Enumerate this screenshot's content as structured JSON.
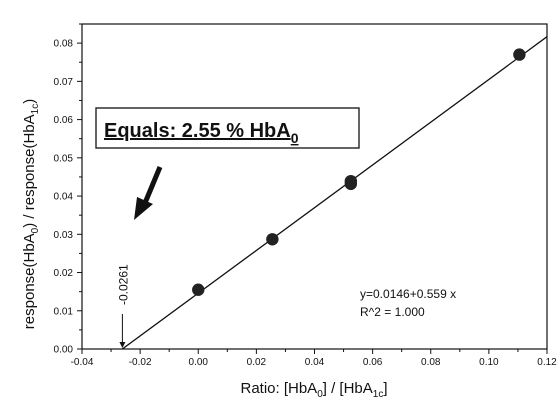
{
  "chart_data": {
    "type": "scatter",
    "title": "",
    "xlabel": {
      "pre": "Ratio: [HbA",
      "sub1": "0",
      "mid": "] / [HbA",
      "sub2": "1c",
      "post": "]"
    },
    "ylabel": {
      "pre": "response(HbA",
      "sub1": "0",
      "mid": ") / response(HbA",
      "sub2": "1c",
      "post": ")"
    },
    "xlim": [
      -0.04,
      0.12
    ],
    "ylim": [
      0.0,
      0.085
    ],
    "xticks": [
      -0.04,
      -0.02,
      0.0,
      0.02,
      0.04,
      0.06,
      0.08,
      0.1,
      0.12
    ],
    "xtick_labels": [
      "-0.04",
      "-0.02",
      "0.00",
      "0.02",
      "0.04",
      "0.06",
      "0.08",
      "0.10",
      "0.12"
    ],
    "yticks": [
      0.0,
      0.01,
      0.02,
      0.03,
      0.04,
      0.05,
      0.06,
      0.07,
      0.08
    ],
    "ytick_labels": [
      "0.00",
      "0.01",
      "0.02",
      "0.03",
      "0.04",
      "0.05",
      "0.06",
      "0.07",
      "0.08"
    ],
    "grid": false,
    "series": [
      {
        "points": [
          {
            "x": 0.0,
            "y": 0.0155
          },
          {
            "x": 0.0255,
            "y": 0.0287
          },
          {
            "x": 0.0525,
            "y": 0.0432
          },
          {
            "x": 0.0525,
            "y": 0.0439
          },
          {
            "x": 0.1105,
            "y": 0.077
          }
        ],
        "fit": {
          "intercept": 0.0146,
          "slope": 0.559
        }
      }
    ],
    "annotations": {
      "equation": "y=0.0146+0.559 x",
      "r_squared": "R^2 = 1.000",
      "x_intercept_label": "-0.0261",
      "x_intercept_value": -0.0261,
      "callout": {
        "pre": "Equals: 2.55 % HbA",
        "sub": "0"
      }
    },
    "colors": {
      "points": "#222222",
      "line": "#111111"
    }
  }
}
